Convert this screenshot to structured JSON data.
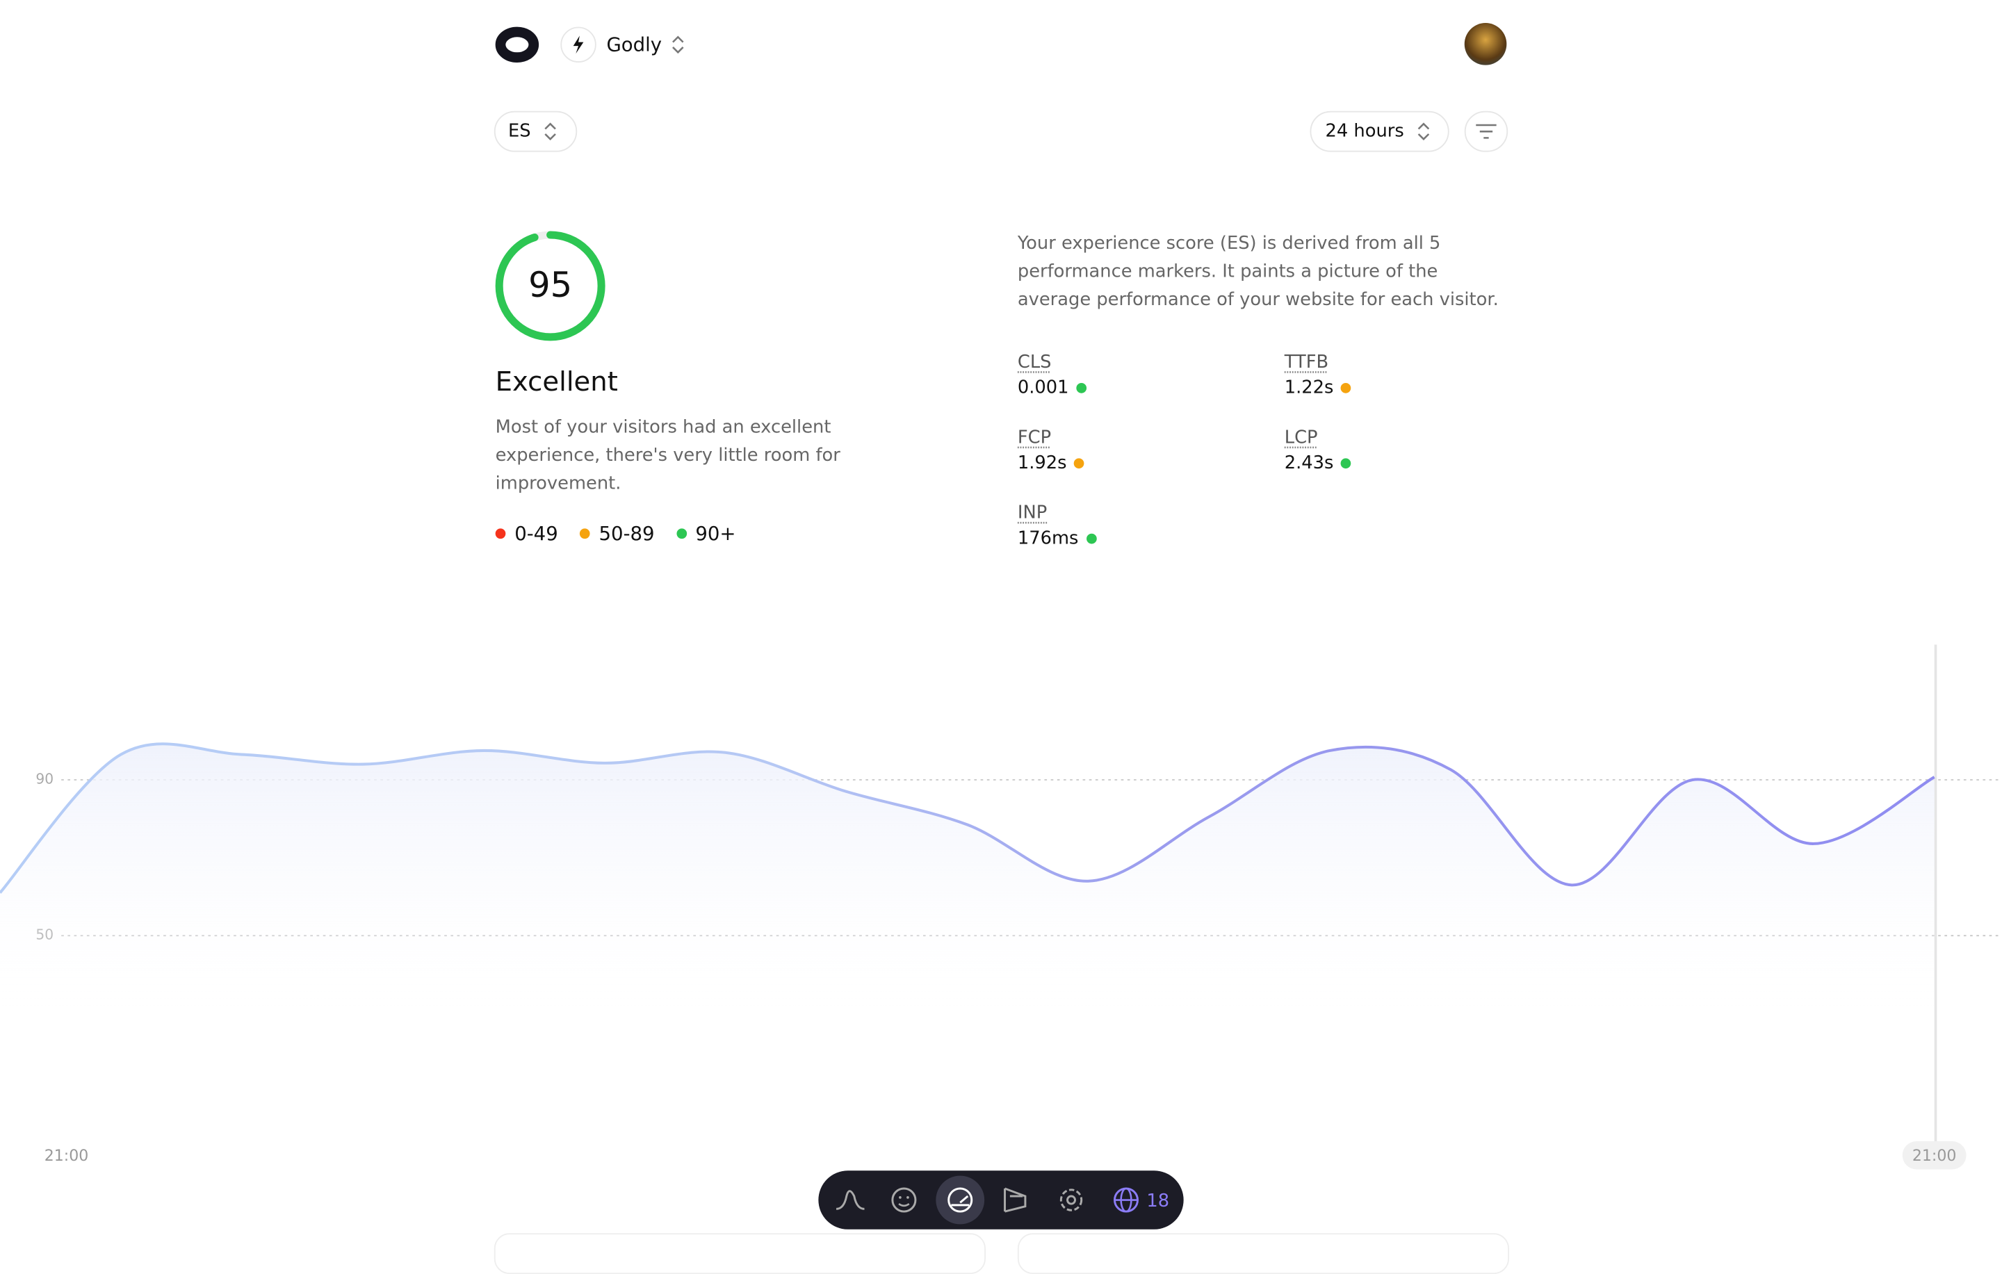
{
  "header": {
    "project": "Godly",
    "metric_selector": "ES",
    "range_selector": "24 hours"
  },
  "score": {
    "value": 95,
    "max": 100,
    "color": "#2dc653",
    "rating": "Excellent",
    "description": "Most of your visitors had an excellent experience, there's very little room for improvement.",
    "legend": [
      {
        "label": "0-49",
        "color": "#f5331c"
      },
      {
        "label": "50-89",
        "color": "#f5a30f"
      },
      {
        "label": "90+",
        "color": "#2dc653"
      }
    ]
  },
  "explanation": "Your experience score (ES) is derived from all 5 performance markers. It paints a picture of the average performance of your website for each visitor.",
  "metrics": [
    {
      "name": "CLS",
      "value": "0.001",
      "color": "#2dc653"
    },
    {
      "name": "TTFB",
      "value": "1.22s",
      "color": "#f5a30f"
    },
    {
      "name": "FCP",
      "value": "1.92s",
      "color": "#f5a30f"
    },
    {
      "name": "LCP",
      "value": "2.43s",
      "color": "#2dc653"
    },
    {
      "name": "INP",
      "value": "176ms",
      "color": "#2dc653"
    }
  ],
  "chart_data": {
    "type": "line",
    "categories": [
      "21:00",
      null,
      null,
      null,
      null,
      null,
      null,
      null,
      null,
      null,
      null,
      null,
      null,
      null,
      null,
      null,
      "21:00"
    ],
    "series": [
      {
        "name": "ES",
        "color": "#8f8cf0",
        "values": [
          61,
          96.5,
          96.5,
          94,
          97.5,
          94.3,
          97,
          87,
          78.5,
          64,
          80.5,
          97.5,
          92.6,
          63,
          90,
          73.6,
          90.7
        ]
      }
    ],
    "ylim": [
      10,
      126
    ],
    "yticks": [
      50,
      90
    ],
    "grid": true
  },
  "dock": {
    "badge": "18"
  }
}
